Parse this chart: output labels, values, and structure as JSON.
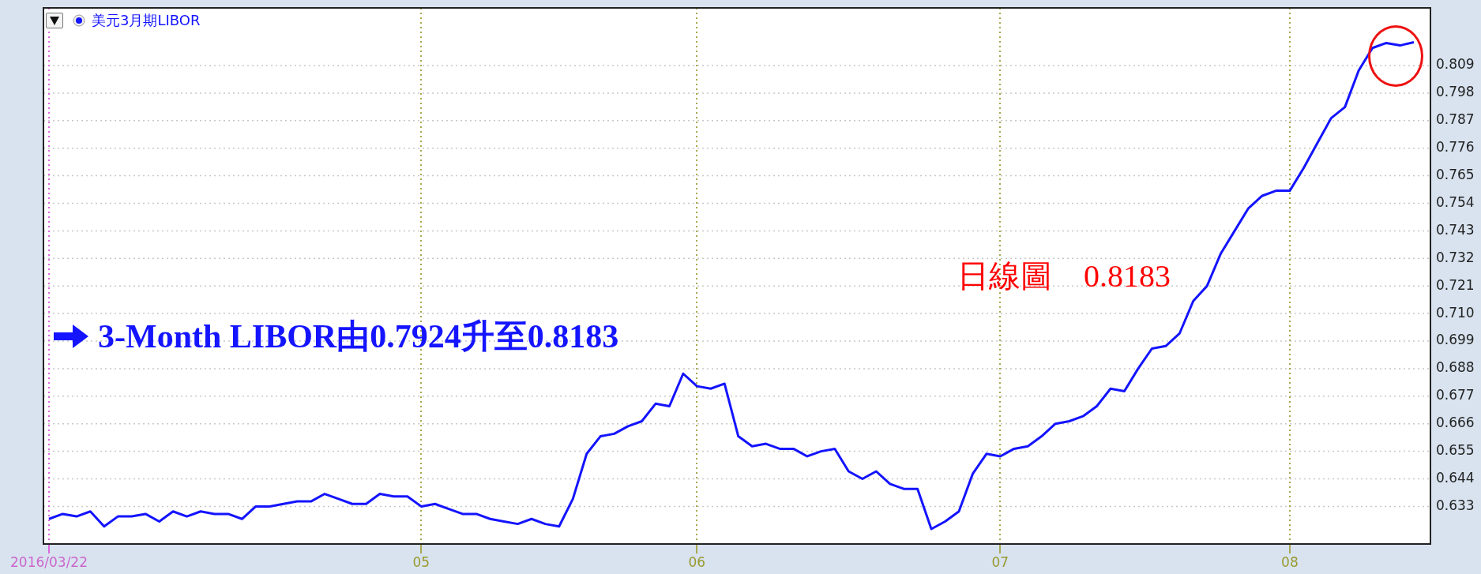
{
  "chart_data": {
    "type": "line",
    "categories": [
      "2016/03/22",
      null,
      null,
      null,
      null,
      null,
      null,
      null,
      null,
      null,
      null,
      null,
      null,
      null,
      null,
      null,
      null,
      null,
      null,
      null,
      null,
      null,
      null,
      null,
      null,
      null,
      null,
      "05",
      null,
      null,
      null,
      null,
      null,
      null,
      null,
      null,
      null,
      null,
      null,
      null,
      null,
      null,
      null,
      null,
      null,
      null,
      null,
      "06",
      null,
      null,
      null,
      null,
      null,
      null,
      null,
      null,
      null,
      null,
      null,
      null,
      null,
      null,
      null,
      null,
      null,
      null,
      null,
      null,
      null,
      "07",
      null,
      null,
      null,
      null,
      null,
      null,
      null,
      null,
      null,
      null,
      null,
      null,
      null,
      null,
      null,
      null,
      null,
      null,
      null,
      null,
      "08",
      null,
      null,
      null,
      null,
      null,
      null,
      null,
      null,
      null
    ],
    "series": [
      {
        "name": "美元3月期LIBOR",
        "color": "#1414ff",
        "values": [
          0.628,
          0.63,
          0.629,
          0.631,
          0.625,
          0.629,
          0.629,
          0.63,
          0.627,
          0.631,
          0.629,
          0.631,
          0.63,
          0.63,
          0.628,
          0.633,
          0.633,
          0.634,
          0.635,
          0.635,
          0.638,
          0.636,
          0.634,
          0.634,
          0.638,
          0.637,
          0.637,
          0.633,
          0.634,
          0.632,
          0.63,
          0.63,
          0.628,
          0.627,
          0.626,
          0.628,
          0.626,
          0.625,
          0.636,
          0.654,
          0.661,
          0.662,
          0.665,
          0.667,
          0.674,
          0.673,
          0.686,
          0.681,
          0.68,
          0.682,
          0.661,
          0.657,
          0.658,
          0.656,
          0.656,
          0.653,
          0.655,
          0.656,
          0.647,
          0.644,
          0.647,
          0.642,
          0.64,
          0.64,
          0.624,
          0.627,
          0.631,
          0.646,
          0.654,
          0.653,
          0.656,
          0.657,
          0.661,
          0.666,
          0.667,
          0.669,
          0.673,
          0.68,
          0.679,
          0.688,
          0.696,
          0.697,
          0.702,
          0.715,
          0.721,
          0.734,
          0.743,
          0.752,
          0.757,
          0.759,
          0.759,
          0.768,
          0.778,
          0.788,
          0.7924,
          0.807,
          0.816,
          0.818,
          0.817,
          0.8183
        ]
      }
    ],
    "ylim": [
      0.618,
      0.832
    ],
    "yticks": [
      0.633,
      0.644,
      0.655,
      0.666,
      0.677,
      0.688,
      0.699,
      {
        "value": 0.71,
        "label": "0.710"
      },
      0.721,
      0.732,
      0.743,
      0.754,
      0.765,
      0.776,
      0.787,
      0.798,
      0.809
    ],
    "grid": true,
    "legend": "top left",
    "marker": "none",
    "line_style": "solid",
    "annotations": [
      "3-Month LIBOR由0.7924升至0.8183",
      "日線圖　0.8183"
    ]
  }
}
